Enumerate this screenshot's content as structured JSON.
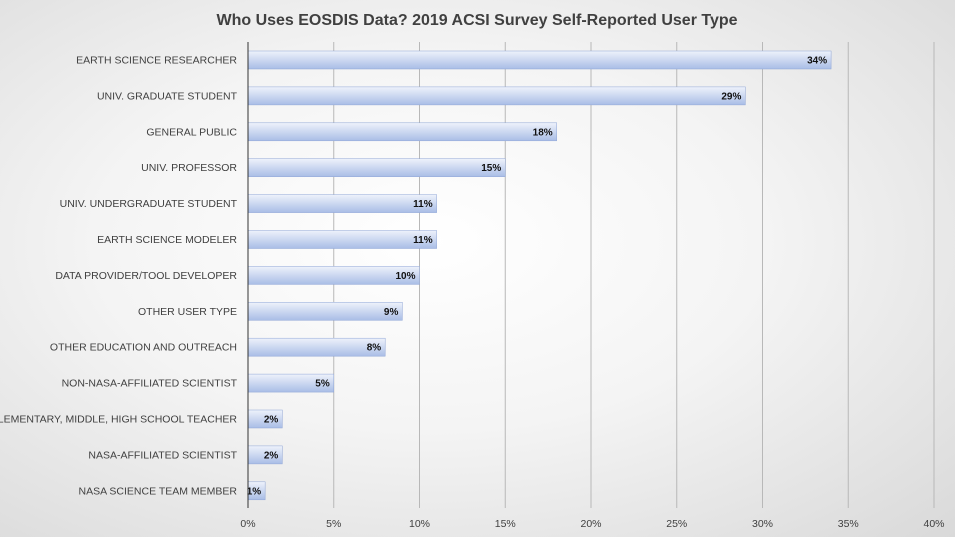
{
  "chart_data": {
    "type": "bar",
    "orientation": "horizontal",
    "title": "Who Uses EOSDIS Data? 2019 ACSI Survey Self-Reported User Type",
    "categories": [
      "EARTH SCIENCE RESEARCHER",
      "UNIV. GRADUATE STUDENT",
      "GENERAL PUBLIC",
      "UNIV. PROFESSOR",
      "UNIV. UNDERGRADUATE STUDENT",
      "EARTH SCIENCE MODELER",
      "DATA PROVIDER/TOOL DEVELOPER",
      "OTHER USER TYPE",
      "OTHER EDUCATION AND OUTREACH",
      "NON-NASA-AFFILIATED SCIENTIST",
      "ELEMENTARY, MIDDLE, HIGH SCHOOL TEACHER",
      "NASA-AFFILIATED SCIENTIST",
      "NASA SCIENCE TEAM MEMBER"
    ],
    "values": [
      34,
      29,
      18,
      15,
      11,
      11,
      10,
      9,
      8,
      5,
      2,
      2,
      1
    ],
    "data_labels": [
      "34%",
      "29%",
      "18%",
      "15%",
      "11%",
      "11%",
      "10%",
      "9%",
      "8%",
      "5%",
      "2%",
      "2%",
      "1%"
    ],
    "xlim": [
      0,
      40
    ],
    "x_ticks": [
      0,
      5,
      10,
      15,
      20,
      25,
      30,
      35,
      40
    ],
    "x_tick_labels": [
      "0%",
      "5%",
      "10%",
      "15%",
      "20%",
      "25%",
      "30%",
      "35%",
      "40%"
    ],
    "grid": "vertical",
    "legend": "none",
    "colors": {
      "bar_light": "#eef2fb",
      "bar_dark": "#a9bde6",
      "bar_edge": "#8fa6d6"
    }
  }
}
